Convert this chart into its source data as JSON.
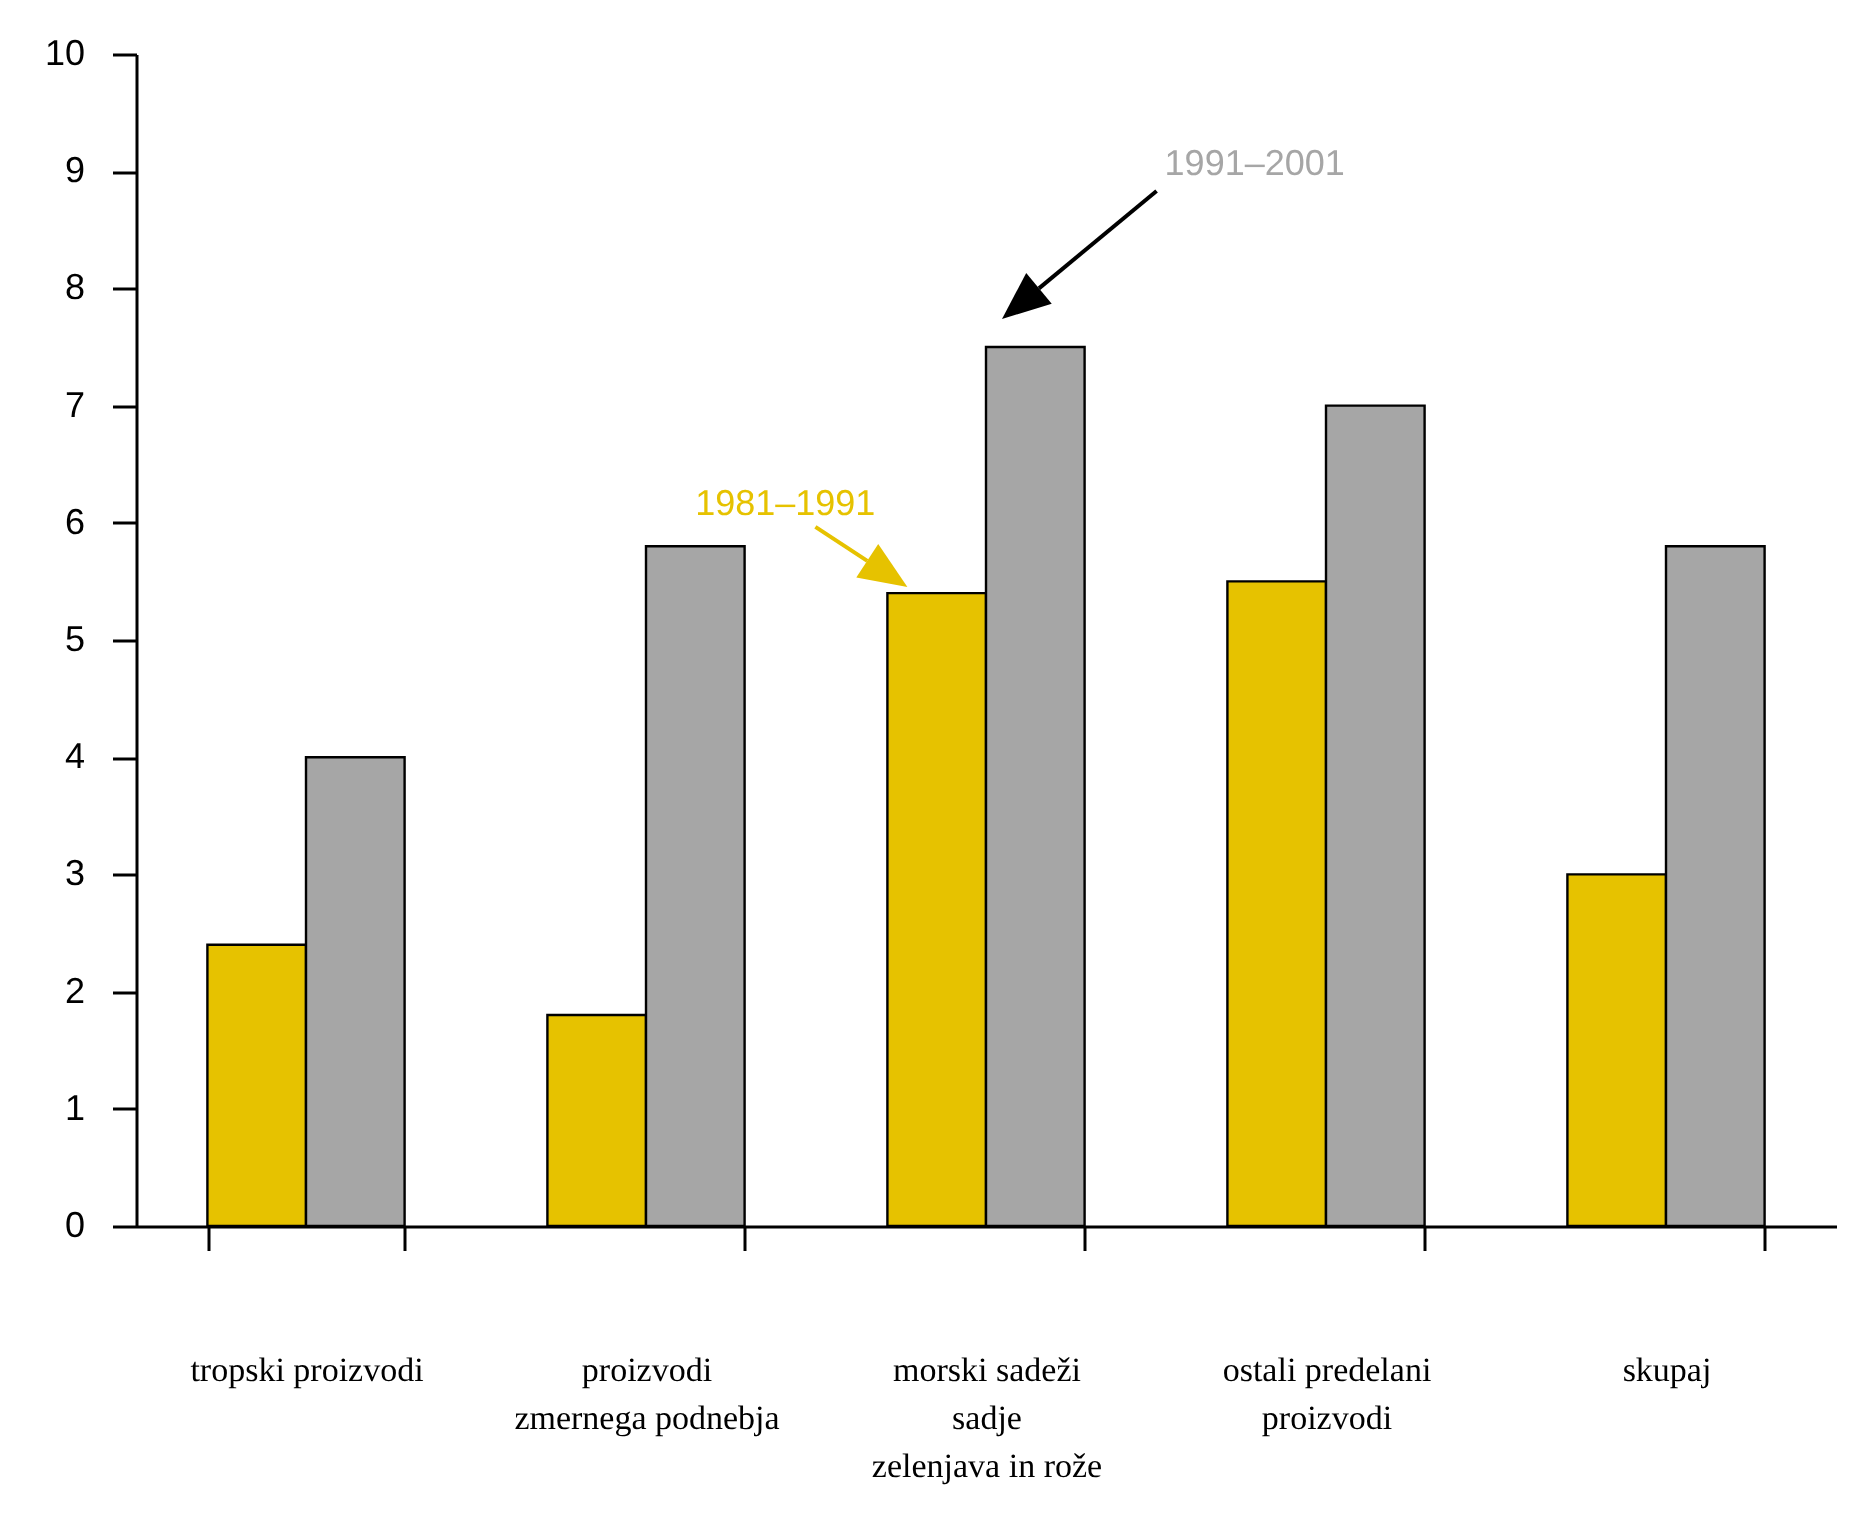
{
  "chart_data": {
    "type": "bar",
    "categories": [
      "tropski proizvodi",
      "proizvodi\nzmernega podnebja",
      "morski sadeži\nsadje\nzelenjava in rože",
      "ostali predelani\nproizvodi",
      "skupaj"
    ],
    "series": [
      {
        "name": "1981–1991",
        "color": "#e6c200",
        "values": [
          2.4,
          1.8,
          5.4,
          5.5,
          3.0
        ]
      },
      {
        "name": "1991–2001",
        "color": "#a6a6a6",
        "values": [
          4.0,
          5.8,
          7.5,
          7.0,
          5.8
        ]
      }
    ],
    "ylim": [
      0,
      10
    ],
    "yticks": [
      0,
      1,
      2,
      3,
      4,
      5,
      6,
      7,
      8,
      9,
      10
    ],
    "grid": false
  }
}
